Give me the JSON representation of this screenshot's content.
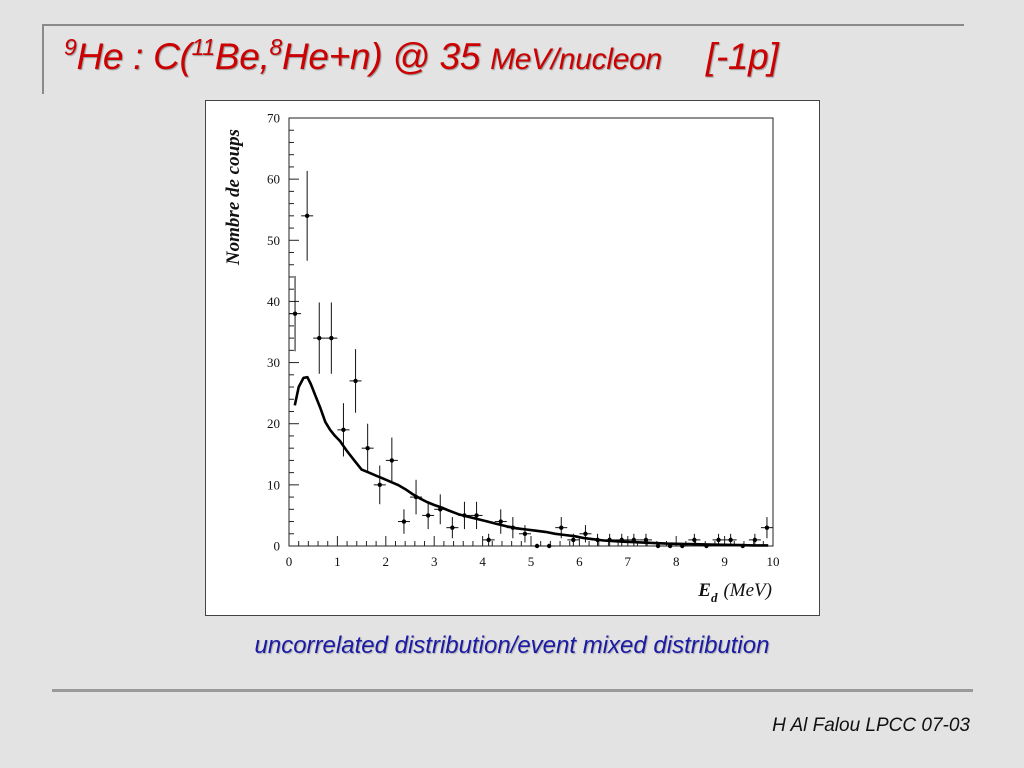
{
  "slide": {
    "title": {
      "sup_9": "9",
      "he_colon": "He :  C(",
      "sup_11": "11",
      "be_comma": "Be,",
      "sup_8": "8",
      "he_n": "He+n) @ 35 ",
      "mev_nucleon": "MeV/nucleon",
      "tag": "[-1p]"
    },
    "caption": "uncorrelated distribution/event mixed distribution",
    "footer": "H Al Falou LPCC 07-03",
    "colors": {
      "title": "#cc0000",
      "caption": "#1a1aa6",
      "background": "#e3e3e3"
    }
  },
  "chart_data": {
    "type": "scatter",
    "title": "",
    "ylabel": "Nombre de coups",
    "xlabel_main": "E",
    "xlabel_sub": "d",
    "xlabel_unit": "(MeV)",
    "xlim": [
      0,
      10
    ],
    "ylim": [
      0,
      70
    ],
    "x_ticks": [
      "0",
      "1",
      "2",
      "3",
      "4",
      "5",
      "6",
      "7",
      "8",
      "9",
      "10"
    ],
    "y_ticks": [
      "0",
      "10",
      "20",
      "30",
      "40",
      "50",
      "60",
      "70"
    ],
    "grid": false,
    "series": [
      {
        "kind": "points-with-errorbars",
        "x": [
          0.125,
          0.375,
          0.625,
          0.875,
          1.125,
          1.375,
          1.625,
          1.875,
          2.125,
          2.375,
          2.625,
          2.875,
          3.125,
          3.375,
          3.625,
          3.875,
          4.125,
          4.375,
          4.625,
          4.875,
          5.125,
          5.375,
          5.625,
          5.875,
          6.125,
          6.375,
          6.625,
          6.875,
          7.125,
          7.375,
          7.625,
          7.875,
          8.125,
          8.375,
          8.625,
          8.875,
          9.125,
          9.375,
          9.625,
          9.875
        ],
        "y": [
          38,
          54,
          34,
          34,
          19,
          27,
          16,
          10,
          14,
          4,
          8,
          5,
          6,
          3,
          5,
          5,
          1,
          4,
          3,
          2,
          0,
          0,
          3,
          1,
          2,
          1,
          1,
          1,
          1,
          1,
          0,
          0,
          0,
          1,
          0,
          1,
          1,
          0,
          1,
          3
        ]
      },
      {
        "kind": "line",
        "x": [
          0.12,
          0.2,
          0.3,
          0.38,
          0.45,
          0.55,
          0.65,
          0.75,
          0.85,
          0.95,
          1.05,
          1.2,
          1.35,
          1.5,
          1.65,
          1.8,
          1.95,
          2.1,
          2.25,
          2.4,
          2.55,
          2.7,
          2.85,
          3.0,
          3.15,
          3.3,
          3.5,
          3.7,
          3.9,
          4.1,
          4.3,
          4.5,
          4.7,
          4.9,
          5.1,
          5.3,
          5.5,
          5.7,
          5.9,
          6.1,
          6.3,
          6.5,
          6.7,
          6.9,
          7.2,
          7.5,
          7.8,
          8.1,
          8.4,
          8.7,
          9.0,
          9.3,
          9.6,
          9.9
        ],
        "y": [
          23,
          26,
          27.5,
          27.6,
          26.5,
          24.5,
          22.5,
          20.3,
          19,
          18,
          17.2,
          15.5,
          14,
          12.5,
          12.0,
          11.5,
          11.0,
          10.5,
          10.0,
          9.3,
          8.5,
          7.8,
          7.2,
          6.7,
          6.3,
          5.8,
          5.2,
          4.8,
          4.4,
          4.0,
          3.6,
          3.2,
          2.9,
          2.7,
          2.5,
          2.3,
          2.0,
          1.8,
          1.6,
          1.3,
          1.1,
          0.9,
          0.8,
          0.7,
          0.6,
          0.5,
          0.4,
          0.35,
          0.3,
          0.25,
          0.2,
          0.15,
          0.1,
          0.1
        ]
      }
    ]
  }
}
